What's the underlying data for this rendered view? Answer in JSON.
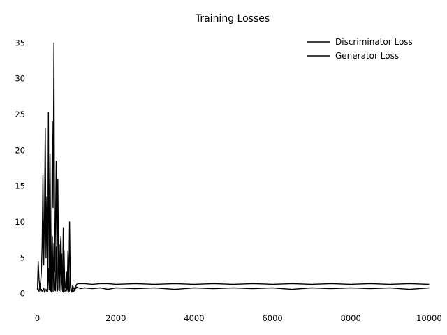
{
  "chart_data": {
    "type": "line",
    "title": "Training Losses",
    "xlabel": "",
    "ylabel": "",
    "xlim": [
      -100,
      10100
    ],
    "ylim": [
      -1,
      36
    ],
    "xticks": [
      0,
      2000,
      4000,
      6000,
      8000,
      10000
    ],
    "yticks": [
      0,
      5,
      10,
      15,
      20,
      25,
      30,
      35
    ],
    "xtick_labels": [
      "0",
      "2000",
      "4000",
      "6000",
      "8000",
      "10000"
    ],
    "ytick_labels": [
      "0",
      "5",
      "10",
      "15",
      "20",
      "25",
      "30",
      "35"
    ],
    "grid": false,
    "legend_position": "top-right",
    "series": [
      {
        "name": "Discriminator Loss",
        "color": "#000000",
        "x": [
          0,
          20,
          40,
          60,
          80,
          100,
          120,
          140,
          160,
          180,
          200,
          220,
          240,
          260,
          280,
          300,
          320,
          340,
          360,
          380,
          400,
          420,
          440,
          460,
          480,
          500,
          520,
          540,
          560,
          580,
          600,
          620,
          640,
          660,
          680,
          700,
          720,
          740,
          760,
          780,
          800,
          820,
          840,
          860,
          880,
          900,
          920,
          940,
          960,
          980,
          1000,
          1050,
          1100,
          1200,
          1400,
          1600,
          1800,
          2000,
          2500,
          3000,
          3500,
          4000,
          4500,
          5000,
          5500,
          6000,
          6500,
          7000,
          7500,
          8000,
          8500,
          9000,
          9500,
          10000
        ],
        "values": [
          1.0,
          0.5,
          0.3,
          1.2,
          0.4,
          0.6,
          0.3,
          0.5,
          0.8,
          0.2,
          0.4,
          0.6,
          0.3,
          1.0,
          3.5,
          0.5,
          7.5,
          0.4,
          0.2,
          8.0,
          0.3,
          7.0,
          0.5,
          0.4,
          6.5,
          0.3,
          0.5,
          7.0,
          0.4,
          6.8,
          0.3,
          5.5,
          0.4,
          0.2,
          6.0,
          0.3,
          0.5,
          0.4,
          2.5,
          0.3,
          0.2,
          0.4,
          2.8,
          0.3,
          0.2,
          0.5,
          0.3,
          0.4,
          0.6,
          1.0,
          1.3,
          1.4,
          1.4,
          1.4,
          1.3,
          1.4,
          1.4,
          1.3,
          1.4,
          1.3,
          1.4,
          1.3,
          1.4,
          1.3,
          1.4,
          1.3,
          1.4,
          1.3,
          1.4,
          1.3,
          1.4,
          1.3,
          1.4,
          1.3
        ]
      },
      {
        "name": "Generator Loss",
        "color": "#000000",
        "x": [
          0,
          20,
          40,
          60,
          80,
          100,
          120,
          140,
          160,
          180,
          200,
          220,
          240,
          260,
          280,
          300,
          320,
          340,
          360,
          380,
          400,
          420,
          440,
          460,
          480,
          500,
          520,
          540,
          560,
          580,
          600,
          620,
          640,
          660,
          680,
          700,
          720,
          740,
          760,
          780,
          800,
          820,
          840,
          860,
          880,
          900,
          920,
          940,
          960,
          980,
          1000,
          1050,
          1100,
          1200,
          1400,
          1600,
          1800,
          2000,
          2500,
          3000,
          3500,
          4000,
          4500,
          5000,
          5500,
          6000,
          6500,
          7000,
          7500,
          8000,
          8500,
          9000,
          9500,
          10000
        ],
        "values": [
          0.5,
          4.5,
          2.0,
          0.8,
          1.5,
          3.0,
          6.5,
          16.5,
          4.0,
          11.0,
          23.0,
          5.0,
          13.5,
          0.3,
          25.3,
          2.0,
          19.5,
          4.5,
          0.3,
          24.0,
          12.0,
          35.0,
          3.0,
          9.0,
          18.5,
          1.5,
          16.0,
          4.0,
          0.8,
          6.0,
          8.0,
          2.0,
          0.5,
          9.2,
          3.5,
          1.2,
          0.8,
          3.0,
          0.6,
          6.0,
          0.4,
          10.0,
          2.0,
          0.5,
          0.3,
          1.2,
          0.8,
          0.6,
          0.9,
          0.7,
          0.9,
          0.8,
          0.7,
          0.8,
          0.7,
          0.8,
          0.6,
          0.8,
          0.7,
          0.8,
          0.6,
          0.8,
          0.7,
          0.8,
          0.7,
          0.8,
          0.6,
          0.8,
          0.7,
          0.8,
          0.7,
          0.8,
          0.6,
          0.8
        ]
      }
    ]
  }
}
